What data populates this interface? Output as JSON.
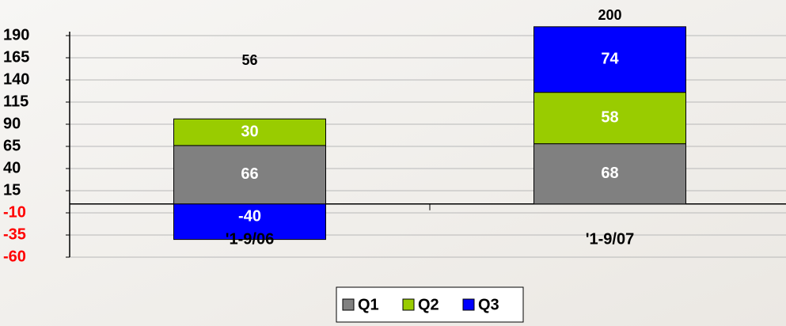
{
  "chart_data": {
    "type": "stacked_bar",
    "categories": [
      "'1-9/06",
      "'1-9/07"
    ],
    "series": [
      {
        "name": "Q1",
        "color": "#808080",
        "values": [
          66,
          68
        ]
      },
      {
        "name": "Q2",
        "color": "#99cc00",
        "values": [
          30,
          58
        ]
      },
      {
        "name": "Q3",
        "color": "#0000ff",
        "values": [
          -40,
          74
        ]
      }
    ],
    "totals": [
      56,
      200
    ],
    "ylim": [
      -60,
      190
    ],
    "yticks": [
      -60,
      -35,
      -10,
      15,
      40,
      65,
      90,
      115,
      140,
      165,
      190
    ],
    "grid": true,
    "negative_tick_color": "#ff0000",
    "legend": "bottom"
  }
}
